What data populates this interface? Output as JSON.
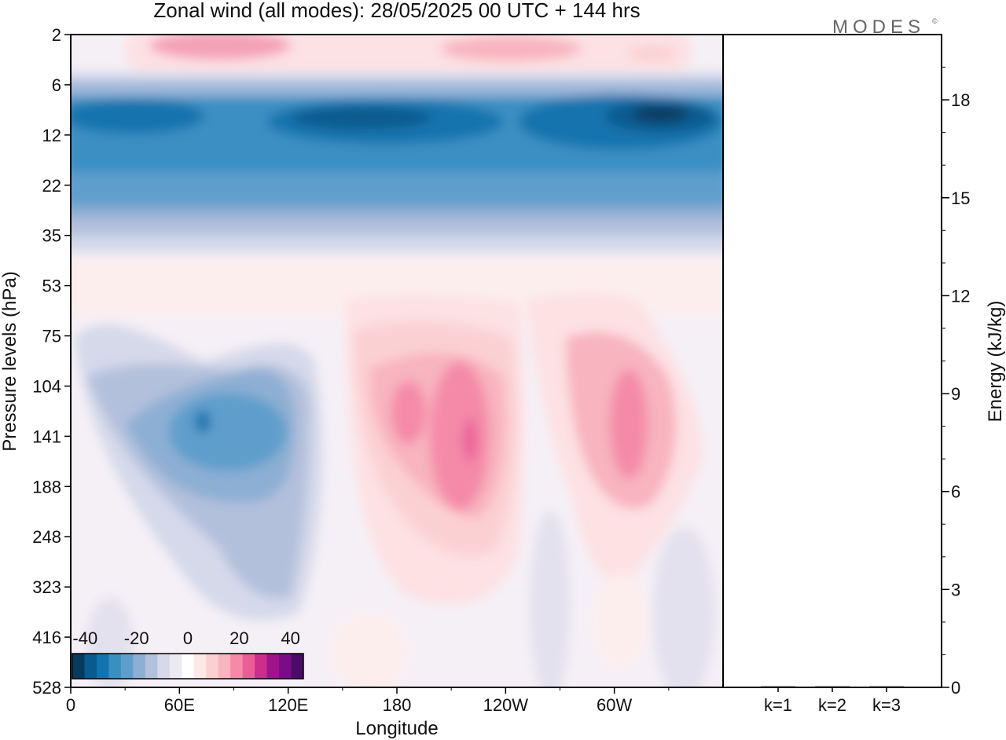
{
  "figure": {
    "title": "Zonal wind (all modes):  28/05/2025  00 UTC  + 144 hrs",
    "logo_text": "MODES",
    "logo_mark": "©"
  },
  "chart_data": [
    {
      "type": "heatmap",
      "title": "Zonal wind (all modes):  28/05/2025  00 UTC  + 144 hrs",
      "xlabel": "Longitude",
      "ylabel": "Pressure levels (hPa)",
      "x_ticks": [
        {
          "lon": 0,
          "label": "0"
        },
        {
          "lon": 60,
          "label": "60E"
        },
        {
          "lon": 120,
          "label": "120E"
        },
        {
          "lon": 180,
          "label": "180"
        },
        {
          "lon": 240,
          "label": "120W"
        },
        {
          "lon": 300,
          "label": "60W"
        }
      ],
      "xlim": [
        0,
        360
      ],
      "y_levels_hpa": [
        2,
        6,
        12,
        22,
        35,
        53,
        75,
        104,
        141,
        188,
        248,
        323,
        416,
        528
      ],
      "y_order": "top-to-bottom",
      "colorbar": {
        "tick_labels": [
          "-40",
          "-20",
          "0",
          "20",
          "40"
        ],
        "tick_values": [
          -40,
          -20,
          0,
          20,
          40
        ],
        "bins": [
          -45,
          -40,
          -35,
          -30,
          -25,
          -20,
          -15,
          -10,
          -5,
          0,
          5,
          10,
          15,
          20,
          25,
          30,
          35,
          40,
          45
        ],
        "colors": [
          "#083a5e",
          "#0b5a8f",
          "#1373ad",
          "#3a8fc2",
          "#5f9ecc",
          "#8dafd3",
          "#b3c0dc",
          "#d5d9ea",
          "#ebe9f2",
          "#ffffff",
          "#fde8e8",
          "#fbd0d3",
          "#f8b4bf",
          "#f48aa8",
          "#ea5e98",
          "#cc2e8c",
          "#a0148a",
          "#7a0c88",
          "#4d0a6a"
        ]
      },
      "field_features": [
        {
          "name": "easterly band",
          "lon": [
            0,
            360
          ],
          "p_hpa": [
            6,
            30
          ],
          "peak": -45
        },
        {
          "name": "upper westerlies",
          "lon": [
            50,
            330
          ],
          "p_hpa": [
            2,
            5
          ],
          "peak": 20
        },
        {
          "name": "easterly jet 60E-120E",
          "lon": [
            30,
            130
          ],
          "p_hpa": [
            75,
            330
          ],
          "peak": -30
        },
        {
          "name": "westerly jet near 150W",
          "lon": [
            150,
            250
          ],
          "p_hpa": [
            53,
            330
          ],
          "peak": 30
        },
        {
          "name": "westerly jet near 60W",
          "lon": [
            270,
            340
          ],
          "p_hpa": [
            75,
            330
          ],
          "peak": 25
        }
      ]
    },
    {
      "type": "bar",
      "ylabel": "Energy (kJ/kg)",
      "categories": [
        "k=1",
        "k=2",
        "k=3"
      ],
      "values": [
        0.02,
        0.01,
        0.01
      ],
      "ylim": [
        0,
        20
      ],
      "y_ticks": [
        0,
        3,
        6,
        9,
        12,
        15,
        18
      ],
      "y_axis_side": "right"
    }
  ]
}
